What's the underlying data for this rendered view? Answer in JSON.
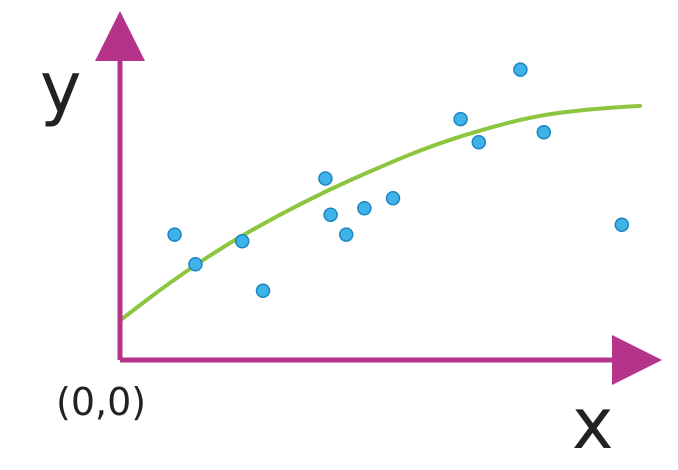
{
  "chart_data": {
    "type": "scatter",
    "xlabel": "x",
    "ylabel": "y",
    "origin_label": "(0,0)",
    "xlim": [
      0,
      10
    ],
    "ylim": [
      0,
      10
    ],
    "grid": false,
    "colors": {
      "axes": "#b5338a",
      "points_fill": "#3fb2e8",
      "points_stroke": "#1a86c4",
      "fit_line": "#8cc63f"
    },
    "series": [
      {
        "type": "scatter",
        "points": [
          {
            "x": 1.05,
            "y": 3.8
          },
          {
            "x": 1.45,
            "y": 2.9
          },
          {
            "x": 2.35,
            "y": 3.6
          },
          {
            "x": 2.75,
            "y": 2.1
          },
          {
            "x": 3.95,
            "y": 5.5
          },
          {
            "x": 4.05,
            "y": 4.4
          },
          {
            "x": 4.35,
            "y": 3.8
          },
          {
            "x": 4.7,
            "y": 4.6
          },
          {
            "x": 5.25,
            "y": 4.9
          },
          {
            "x": 6.55,
            "y": 7.3
          },
          {
            "x": 6.9,
            "y": 6.6
          },
          {
            "x": 7.7,
            "y": 8.8
          },
          {
            "x": 8.15,
            "y": 6.9
          },
          {
            "x": 9.65,
            "y": 4.1
          }
        ]
      },
      {
        "type": "line",
        "points": [
          {
            "x": 0.0,
            "y": 1.2
          },
          {
            "x": 1.0,
            "y": 2.4
          },
          {
            "x": 2.0,
            "y": 3.45
          },
          {
            "x": 3.0,
            "y": 4.35
          },
          {
            "x": 4.0,
            "y": 5.15
          },
          {
            "x": 5.0,
            "y": 5.85
          },
          {
            "x": 6.0,
            "y": 6.5
          },
          {
            "x": 7.0,
            "y": 7.0
          },
          {
            "x": 8.0,
            "y": 7.4
          },
          {
            "x": 9.0,
            "y": 7.6
          },
          {
            "x": 10.0,
            "y": 7.7
          }
        ]
      }
    ]
  }
}
